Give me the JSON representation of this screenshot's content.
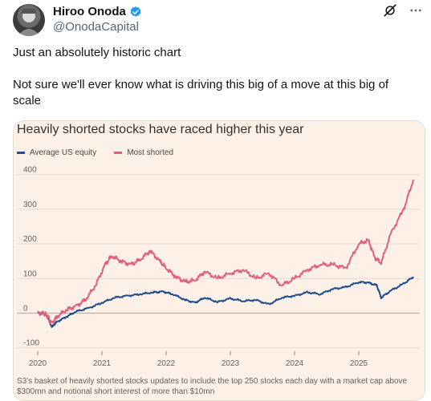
{
  "tweet": {
    "author_name": "Hiroo Onoda",
    "handle": "@OnodaCapital",
    "text_lines": [
      "Just an absolutely historic chart",
      "Not sure we'll ever know what is driving this big of a move at this big of scale"
    ]
  },
  "icons": {
    "verified": "verified-badge-icon",
    "grok": "grok-icon",
    "more": "more-icon"
  },
  "colors": {
    "average_series": "#1f4e8f",
    "shorted_series": "#e0607e",
    "verified": "#1d9bf0",
    "card_bg": "#fdf0e6"
  },
  "chart_data": {
    "type": "line",
    "title": "Heavily shorted stocks have raced higher this year",
    "x_ticks": [
      "2020",
      "2021",
      "2022",
      "2023",
      "2024",
      "2025"
    ],
    "y_ticks": [
      400,
      300,
      200,
      100,
      0,
      -100
    ],
    "xlim": [
      2020.0,
      2025.95
    ],
    "ylim": [
      -110,
      420
    ],
    "grid": true,
    "legend_position": "top-left",
    "series": [
      {
        "name": "Average US equity",
        "color": "#1f4e8f",
        "x": [
          2020.0,
          2020.1,
          2020.15,
          2020.22,
          2020.3,
          2020.45,
          2020.6,
          2020.8,
          2021.0,
          2021.2,
          2021.4,
          2021.6,
          2021.8,
          2021.95,
          2022.1,
          2022.3,
          2022.45,
          2022.6,
          2022.8,
          2023.0,
          2023.2,
          2023.4,
          2023.6,
          2023.8,
          2024.0,
          2024.2,
          2024.4,
          2024.6,
          2024.8,
          2025.0,
          2025.15,
          2025.28,
          2025.35,
          2025.5,
          2025.7,
          2025.85
        ],
        "values": [
          0,
          0,
          -10,
          -40,
          -25,
          -10,
          5,
          15,
          30,
          45,
          50,
          55,
          60,
          62,
          55,
          38,
          30,
          45,
          32,
          42,
          35,
          38,
          25,
          45,
          50,
          60,
          55,
          70,
          75,
          90,
          88,
          80,
          45,
          65,
          85,
          105
        ]
      },
      {
        "name": "Most shorted",
        "color": "#e0607e",
        "x": [
          2020.0,
          2020.1,
          2020.15,
          2020.22,
          2020.3,
          2020.45,
          2020.6,
          2020.75,
          2020.9,
          2021.05,
          2021.15,
          2021.3,
          2021.45,
          2021.6,
          2021.75,
          2021.9,
          2022.0,
          2022.15,
          2022.3,
          2022.45,
          2022.6,
          2022.8,
          2023.0,
          2023.2,
          2023.4,
          2023.6,
          2023.8,
          2024.0,
          2024.2,
          2024.4,
          2024.6,
          2024.8,
          2025.0,
          2025.15,
          2025.25,
          2025.35,
          2025.5,
          2025.7,
          2025.85
        ],
        "values": [
          0,
          0,
          -8,
          -30,
          -10,
          10,
          20,
          40,
          80,
          140,
          165,
          150,
          140,
          155,
          180,
          150,
          130,
          105,
          90,
          95,
          120,
          100,
          115,
          125,
          100,
          115,
          80,
          100,
          125,
          140,
          140,
          130,
          200,
          210,
          160,
          145,
          230,
          300,
          385
        ]
      }
    ],
    "source": "S3's basket of heavily shorted stocks updates to include the top 250 stocks each day with a market cap above $300mn and notional short interest of more than $10mn"
  }
}
